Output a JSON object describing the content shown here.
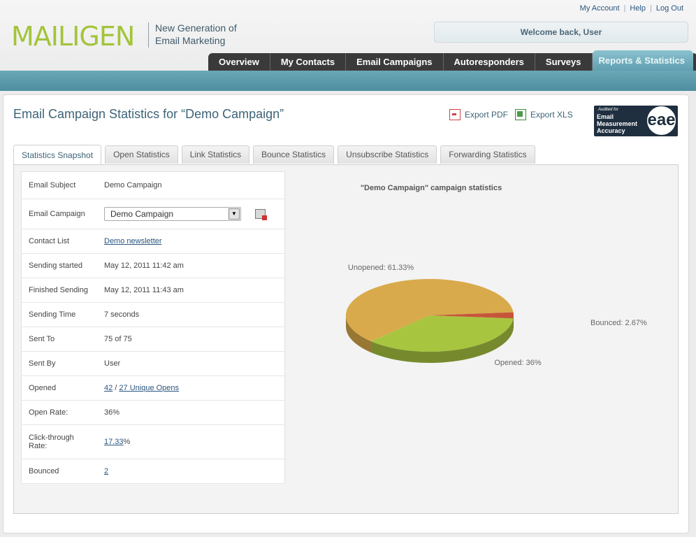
{
  "header": {
    "logo": "MAILIGEN",
    "tagline_line1": "New Generation of",
    "tagline_line2": "Email Marketing",
    "links": [
      "My Account",
      "Help",
      "Log Out"
    ],
    "welcome": "Welcome back, User",
    "nav": [
      "Overview",
      "My Contacts",
      "Email Campaigns",
      "Autoresponders",
      "Surveys",
      "Reports & Statistics"
    ],
    "active_nav": "Reports & Statistics"
  },
  "page": {
    "title": "Email Campaign Statistics for “Demo Campaign”",
    "export_pdf": "Export PDF",
    "export_xls": "Export XLS",
    "badge_small": "Audited for",
    "badge_line1": "Email",
    "badge_line2": "Measurement",
    "badge_line3": "Accuracy",
    "badge_logo": "eae",
    "tabs": [
      "Statistics Snapshot",
      "Open Statistics",
      "Link Statistics",
      "Bounce Statistics",
      "Unsubscribe Statistics",
      "Forwarding Statistics"
    ],
    "active_tab": "Statistics Snapshot"
  },
  "stats": {
    "email_subject_label": "Email Subject",
    "email_subject": "Demo Campaign",
    "email_campaign_label": "Email Campaign",
    "email_campaign": "Demo Campaign",
    "contact_list_label": "Contact List",
    "contact_list": "Demo newsletter",
    "sending_started_label": "Sending started",
    "sending_started": "May 12, 2011 11:42 am",
    "finished_sending_label": "Finished Sending",
    "finished_sending": "May 12, 2011 11:43 am",
    "sending_time_label": "Sending Time",
    "sending_time": "7 seconds",
    "sent_to_label": "Sent To",
    "sent_to": "75 of 75",
    "sent_by_label": "Sent By",
    "sent_by": "User",
    "opened_label": "Opened",
    "opened_total": "42",
    "opened_sep": " / ",
    "opened_unique": "27 Unique Opens",
    "open_rate_label": "Open Rate:",
    "open_rate": "36%",
    "ctr_label_1": "Click-through",
    "ctr_label_2": "Rate:",
    "ctr_value": "17.33",
    "ctr_suffix": "%",
    "bounced_label": "Bounced",
    "bounced": "2"
  },
  "colors": {
    "unopened": "#d9aa4b",
    "opened": "#a8c540",
    "bounced": "#c6553a"
  },
  "chart_data": {
    "type": "pie",
    "title": "\"Demo Campaign\" campaign statistics",
    "slices": [
      {
        "label": "Unopened: 61.33%",
        "value": 61.33
      },
      {
        "label": "Opened: 36%",
        "value": 36
      },
      {
        "label": "Bounced: 2.67%",
        "value": 2.67
      }
    ],
    "legend": "none"
  }
}
